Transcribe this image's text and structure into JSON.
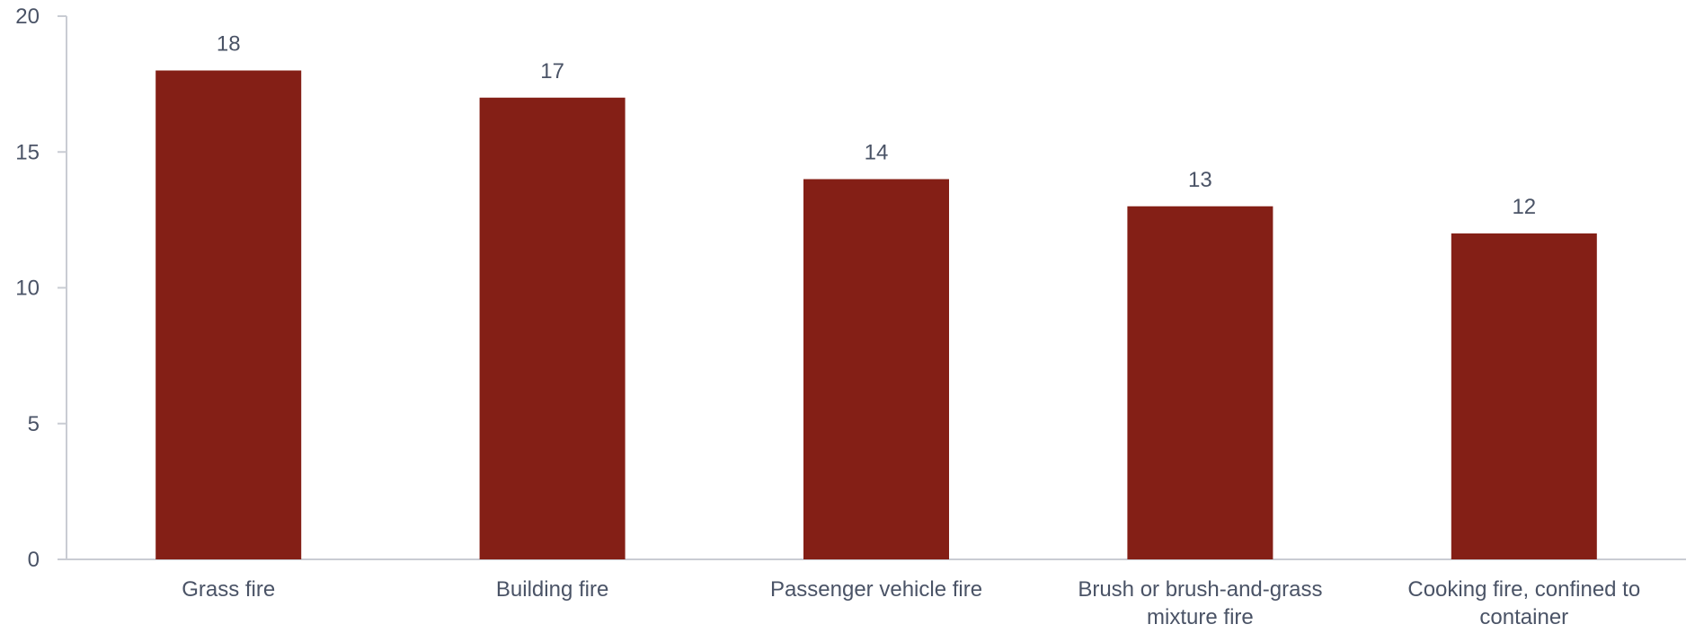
{
  "chart_data": {
    "type": "bar",
    "categories": [
      "Grass fire",
      "Building fire",
      "Passenger vehicle fire",
      "Brush or brush-and-grass mixture fire",
      "Cooking fire, confined to container"
    ],
    "category_lines": [
      [
        "Grass fire"
      ],
      [
        "Building fire"
      ],
      [
        "Passenger vehicle fire"
      ],
      [
        "Brush or brush-and-grass",
        "mixture fire"
      ],
      [
        "Cooking fire, confined to",
        "container"
      ]
    ],
    "values": [
      18,
      17,
      14,
      13,
      12
    ],
    "value_labels": [
      "18",
      "17",
      "14",
      "13",
      "12"
    ],
    "yticks": [
      0,
      5,
      10,
      15,
      20
    ],
    "ytick_labels": [
      "0",
      "5",
      "10",
      "15",
      "20"
    ],
    "ylim": [
      0,
      20
    ],
    "title": "",
    "xlabel": "",
    "ylabel": "",
    "grid": false,
    "legend": "none",
    "colors": {
      "bar": "#841f16",
      "axis": "#c9ccd3",
      "text": "#4a5366"
    }
  }
}
